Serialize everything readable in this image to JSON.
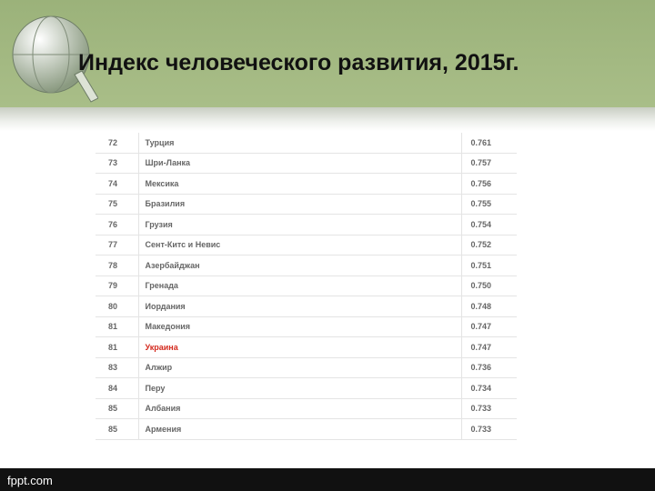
{
  "header": {
    "title": "Индекс человеческого развития, 2015г."
  },
  "table": {
    "rows": [
      {
        "rank": "72",
        "country": "Турция",
        "hdi": "0.761"
      },
      {
        "rank": "73",
        "country": "Шри-Ланка",
        "hdi": "0.757"
      },
      {
        "rank": "74",
        "country": "Мексика",
        "hdi": "0.756"
      },
      {
        "rank": "75",
        "country": "Бразилия",
        "hdi": "0.755"
      },
      {
        "rank": "76",
        "country": "Грузия",
        "hdi": "0.754"
      },
      {
        "rank": "77",
        "country": "Сент-Китс и Невис",
        "hdi": "0.752"
      },
      {
        "rank": "78",
        "country": "Азербайджан",
        "hdi": "0.751"
      },
      {
        "rank": "79",
        "country": "Гренада",
        "hdi": "0.750"
      },
      {
        "rank": "80",
        "country": "Иордания",
        "hdi": "0.748"
      },
      {
        "rank": "81",
        "country": "Македония",
        "hdi": "0.747"
      },
      {
        "rank": "81",
        "country": "Украина",
        "hdi": "0.747",
        "color": "#d42a1e"
      },
      {
        "rank": "83",
        "country": "Алжир",
        "hdi": "0.736"
      },
      {
        "rank": "84",
        "country": "Перу",
        "hdi": "0.734"
      },
      {
        "rank": "85",
        "country": "Албания",
        "hdi": "0.733"
      },
      {
        "rank": "85",
        "country": "Армения",
        "hdi": "0.733"
      }
    ]
  },
  "footer": {
    "site": "fppt.com"
  }
}
